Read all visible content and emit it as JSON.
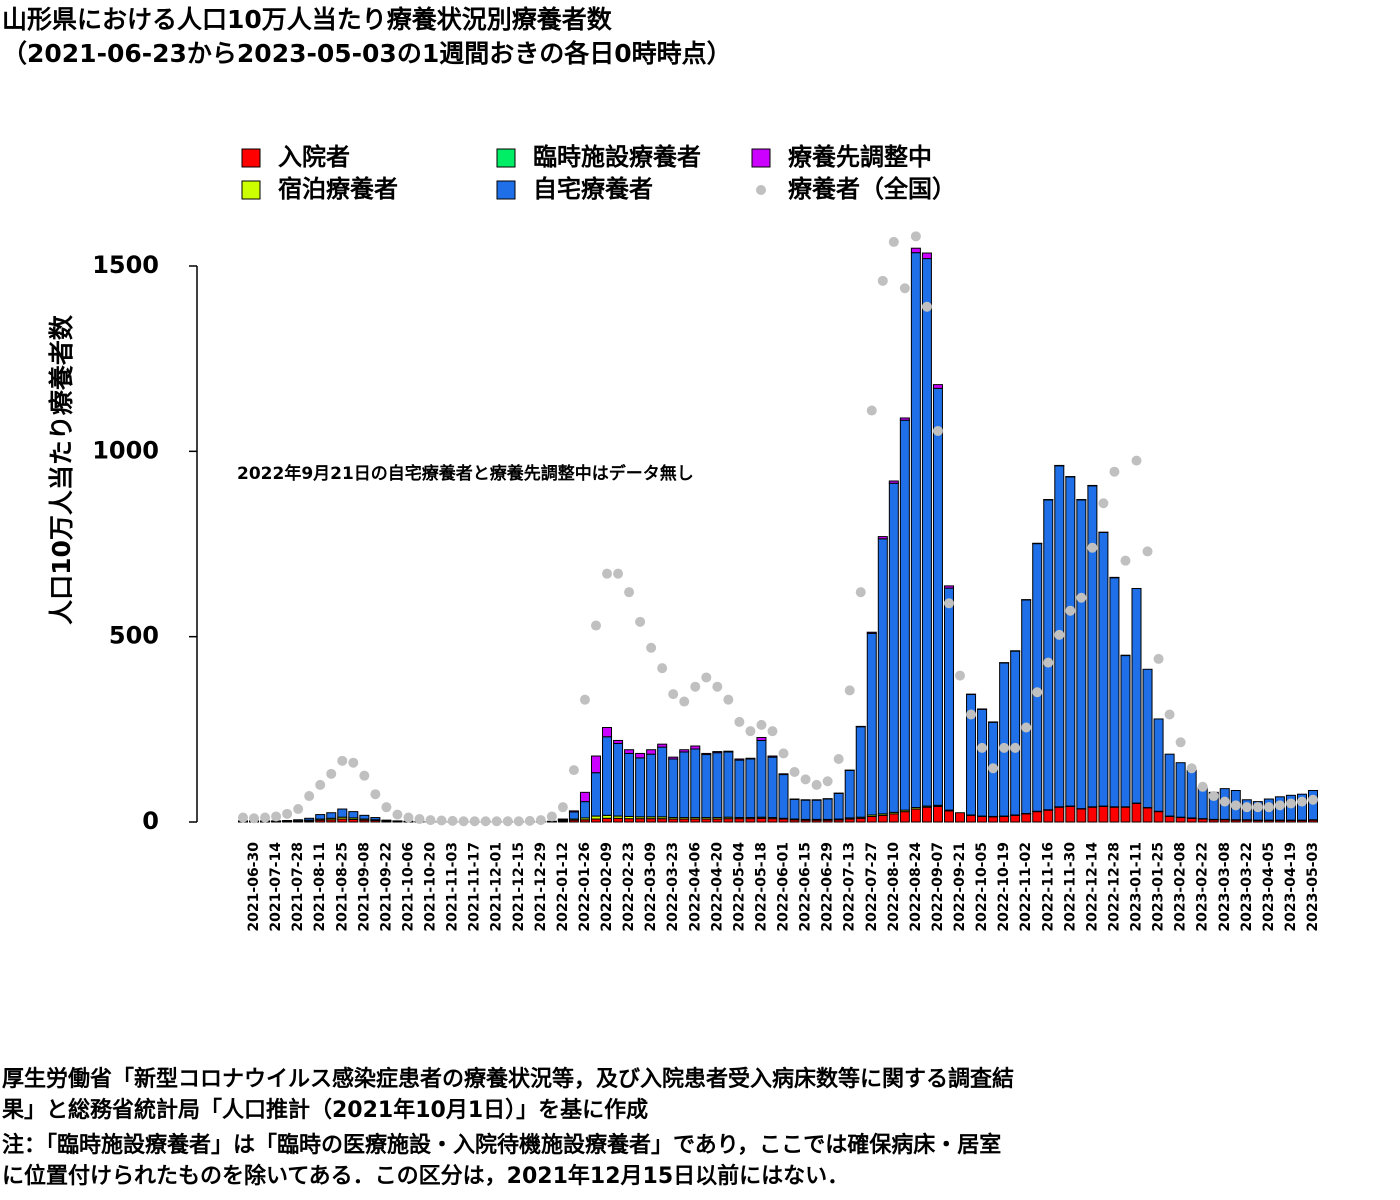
{
  "chart_data": {
    "type": "stacked-bar",
    "title": "山形県における人口10万人当たり療養状況別療養者数",
    "subtitle": "（2021-06-23から2023-05-03の1週間おきの各日0時時点）",
    "y_label": "人口10万人当たり療養者数",
    "annotation": "2022年9月21日の自宅療養者と療養先調整中はデータ無し",
    "notes": [
      "厚生労働省「新型コロナウイルス感染症患者の療養状況等，及び入院患者受入病床数等に関する調査結",
      "果」と総務省統計局「人口推計（2021年10月1日）」を基に作成",
      "注：「臨時施設療養者」は「臨時の医療施設・入院待機施設療養者」であり，ここでは確保病床・居室",
      "に位置付けられたものを除いてある．この区分は，2021年12月15日以前にはない．"
    ],
    "categories": [
      null,
      "2021-06-30",
      null,
      "2021-07-14",
      null,
      "2021-07-28",
      null,
      "2021-08-11",
      null,
      "2021-08-25",
      null,
      "2021-09-08",
      null,
      "2021-09-22",
      null,
      "2021-10-06",
      null,
      "2021-10-20",
      null,
      "2021-11-03",
      null,
      "2021-11-17",
      null,
      "2021-12-01",
      null,
      "2021-12-15",
      null,
      "2021-12-29",
      null,
      "2022-01-12",
      null,
      "2022-01-26",
      null,
      "2022-02-09",
      null,
      "2022-02-23",
      null,
      "2022-03-09",
      null,
      "2022-03-23",
      null,
      "2022-04-06",
      null,
      "2022-04-20",
      null,
      "2022-05-04",
      null,
      "2022-05-18",
      null,
      "2022-06-01",
      null,
      "2022-06-15",
      null,
      "2022-06-29",
      null,
      "2022-07-13",
      null,
      "2022-07-27",
      null,
      "2022-08-10",
      null,
      "2022-08-24",
      null,
      "2022-09-07",
      null,
      "2022-09-21",
      null,
      "2022-10-05",
      null,
      "2022-10-19",
      null,
      "2022-11-02",
      null,
      "2022-11-16",
      null,
      "2022-11-30",
      null,
      "2022-12-14",
      null,
      "2022-12-28",
      null,
      "2023-01-11",
      null,
      "2023-01-25",
      null,
      "2023-02-08",
      null,
      "2023-02-22",
      null,
      "2023-03-08",
      null,
      "2023-03-22",
      null,
      "2023-04-05",
      null,
      "2023-04-19",
      null,
      "2023-05-03"
    ],
    "series": [
      {
        "name": "入院者",
        "color": "#ff0000",
        "values": [
          1,
          1,
          1,
          1,
          1,
          2,
          3,
          5,
          6,
          8,
          7,
          5,
          4,
          2,
          1,
          1,
          1,
          0,
          0,
          0,
          0,
          0,
          0,
          0,
          0,
          0,
          0,
          0,
          1,
          3,
          5,
          6,
          8,
          10,
          10,
          9,
          9,
          9,
          9,
          8,
          8,
          8,
          8,
          8,
          9,
          9,
          9,
          10,
          9,
          8,
          6,
          5,
          5,
          5,
          6,
          8,
          10,
          15,
          18,
          22,
          28,
          35,
          40,
          42,
          30,
          25,
          18,
          15,
          14,
          15,
          18,
          22,
          28,
          32,
          40,
          42,
          35,
          40,
          42,
          40,
          40,
          50,
          38,
          28,
          15,
          12,
          10,
          8,
          6,
          6,
          5,
          5,
          4,
          4,
          4,
          4,
          4,
          5
        ]
      },
      {
        "name": "宿泊療養者",
        "color": "#ccff00",
        "values": [
          1,
          1,
          1,
          1,
          1,
          1,
          2,
          3,
          4,
          5,
          4,
          3,
          2,
          1,
          0,
          0,
          0,
          0,
          0,
          0,
          0,
          0,
          0,
          0,
          0,
          0,
          0,
          0,
          1,
          2,
          3,
          5,
          8,
          8,
          6,
          6,
          5,
          5,
          5,
          4,
          4,
          4,
          4,
          4,
          4,
          3,
          3,
          3,
          3,
          2,
          2,
          2,
          2,
          2,
          2,
          3,
          3,
          4,
          4,
          4,
          4,
          4,
          3,
          3,
          2,
          0,
          1,
          1,
          1,
          1,
          1,
          1,
          1,
          1,
          1,
          1,
          1,
          1,
          1,
          1,
          1,
          1,
          1,
          1,
          1,
          1,
          1,
          1,
          1,
          1,
          1,
          1,
          1,
          1,
          1,
          1,
          1,
          1
        ]
      },
      {
        "name": "臨時施設療養者",
        "color": "#00ee66",
        "values": [
          null,
          null,
          null,
          null,
          null,
          null,
          null,
          null,
          null,
          null,
          null,
          null,
          null,
          null,
          null,
          null,
          null,
          null,
          null,
          null,
          null,
          null,
          null,
          null,
          null,
          null,
          0,
          0,
          0,
          0,
          0,
          0,
          0,
          0,
          0,
          0,
          0,
          0,
          0,
          0,
          0,
          0,
          0,
          0,
          0,
          0,
          0,
          0,
          0,
          0,
          0,
          0,
          0,
          0,
          0,
          0,
          0,
          0,
          0,
          0,
          0,
          0,
          0,
          0,
          0,
          0,
          0,
          0,
          0,
          0,
          0,
          0,
          0,
          0,
          0,
          0,
          0,
          0,
          0,
          0,
          0,
          0,
          0,
          0,
          0,
          0,
          0,
          0,
          0,
          0,
          0,
          0,
          0,
          0,
          0,
          0,
          0,
          0
        ]
      },
      {
        "name": "自宅療養者",
        "color": "#1e6fe8",
        "values": [
          1,
          1,
          1,
          1,
          2,
          3,
          5,
          12,
          15,
          22,
          17,
          10,
          6,
          2,
          2,
          1,
          0,
          1,
          1,
          1,
          1,
          1,
          1,
          1,
          1,
          1,
          1,
          1,
          0,
          2,
          19,
          44,
          117,
          212,
          196,
          170,
          159,
          169,
          188,
          158,
          177,
          185,
          170,
          175,
          176,
          155,
          158,
          207,
          163,
          118,
          53,
          52,
          52,
          55,
          69,
          128,
          244,
          490,
          742,
          888,
          1052,
          1497,
          1477,
          1125,
          599,
          null,
          325,
          288,
          254,
          413,
          442,
          576,
          722,
          836,
          920,
          888,
          833,
          866,
          738,
          618,
          408,
          579,
          373,
          249,
          167,
          147,
          129,
          83,
          73,
          83,
          79,
          54,
          50,
          57,
          63,
          67,
          70,
          79
        ]
      },
      {
        "name": "療養先調整中",
        "color": "#cc00ff",
        "values": [
          0,
          0,
          0,
          0,
          0,
          0,
          0,
          0,
          0,
          0,
          0,
          0,
          0,
          0,
          0,
          0,
          0,
          0,
          0,
          0,
          0,
          0,
          0,
          0,
          0,
          0,
          0,
          0,
          0,
          1,
          3,
          25,
          45,
          25,
          8,
          10,
          12,
          12,
          8,
          5,
          6,
          8,
          3,
          3,
          2,
          3,
          2,
          8,
          3,
          2,
          1,
          1,
          1,
          1,
          1,
          1,
          1,
          3,
          6,
          6,
          6,
          12,
          15,
          10,
          6,
          null,
          1,
          1,
          1,
          1,
          1,
          1,
          1,
          1,
          1,
          1,
          1,
          1,
          1,
          1,
          1,
          0,
          0,
          0,
          0,
          0,
          0,
          0,
          0,
          0,
          0,
          0,
          0,
          0,
          0,
          0,
          0,
          0
        ]
      },
      {
        "name": "療養者（全国）",
        "type": "scatter",
        "color": "#c0c0c0",
        "values": [
          12,
          10,
          12,
          15,
          22,
          35,
          70,
          100,
          130,
          165,
          160,
          125,
          75,
          40,
          20,
          12,
          8,
          5,
          4,
          3,
          2,
          2,
          2,
          2,
          2,
          2,
          3,
          5,
          15,
          40,
          140,
          330,
          530,
          670,
          670,
          620,
          540,
          470,
          415,
          345,
          325,
          365,
          390,
          365,
          330,
          270,
          245,
          262,
          245,
          185,
          135,
          115,
          100,
          110,
          170,
          355,
          620,
          1110,
          1460,
          1565,
          1440,
          1580,
          1390,
          1055,
          590,
          395,
          290,
          200,
          145,
          200,
          200,
          255,
          350,
          430,
          505,
          570,
          605,
          740,
          860,
          945,
          705,
          975,
          730,
          440,
          290,
          215,
          145,
          95,
          70,
          55,
          45,
          40,
          40,
          40,
          45,
          50,
          55,
          60
        ]
      }
    ],
    "ylim": [
      0,
      1600
    ],
    "yticks": [
      0,
      500,
      1000,
      1500
    ]
  }
}
